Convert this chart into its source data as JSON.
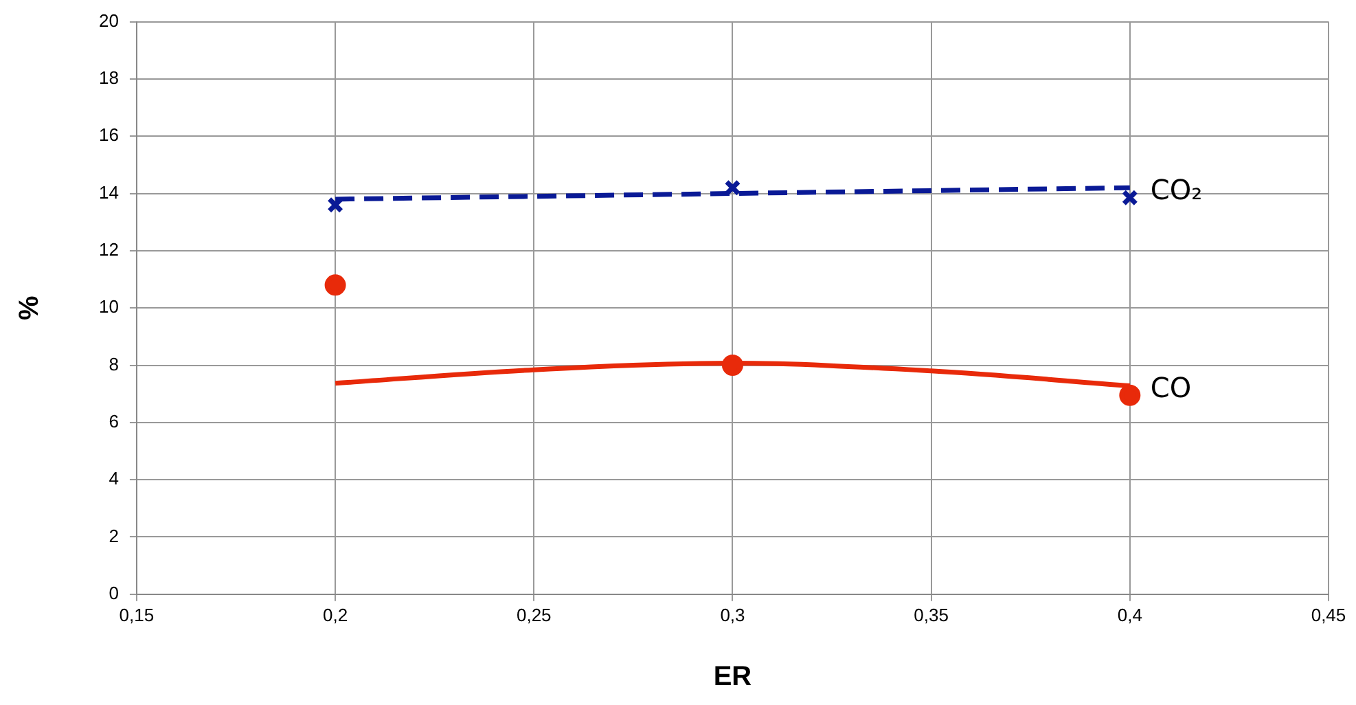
{
  "chart_data": {
    "type": "scatter",
    "xlabel": "ER",
    "ylabel": "%",
    "xlim": [
      0.15,
      0.45
    ],
    "xticks": [
      {
        "value": 0.15,
        "label": "0,15"
      },
      {
        "value": 0.2,
        "label": "0,2"
      },
      {
        "value": 0.25,
        "label": "0,25"
      },
      {
        "value": 0.3,
        "label": "0,3"
      },
      {
        "value": 0.35,
        "label": "0,35"
      },
      {
        "value": 0.4,
        "label": "0,4"
      },
      {
        "value": 0.45,
        "label": "0,45"
      }
    ],
    "ylim": [
      0,
      20
    ],
    "yticks": [
      0,
      2,
      4,
      6,
      8,
      10,
      12,
      14,
      16,
      18,
      20
    ],
    "grid": true,
    "legend": false,
    "series": [
      {
        "type": "line",
        "color": "#0a1a96",
        "line_style": "dashed",
        "marker": "none",
        "x": [
          0.2,
          0.3,
          0.4
        ],
        "values": [
          13.8,
          14.0,
          14.2
        ]
      },
      {
        "type": "scatter",
        "name": "CO₂",
        "color": "#0a1a96",
        "marker": "cross",
        "x": [
          0.2,
          0.3,
          0.4
        ],
        "values": [
          13.6,
          14.2,
          13.85
        ]
      },
      {
        "type": "line",
        "color": "#e82a0a",
        "line_style": "solid",
        "marker": "none",
        "x": [
          0.2,
          0.25,
          0.3,
          0.35,
          0.4
        ],
        "values": [
          7.37,
          7.84,
          8.07,
          7.8,
          7.28
        ]
      },
      {
        "type": "scatter",
        "name": "CO",
        "color": "#e82a0a",
        "marker": "circle",
        "x": [
          0.2,
          0.3,
          0.4
        ],
        "values": [
          10.8,
          8.0,
          6.95
        ]
      }
    ]
  }
}
